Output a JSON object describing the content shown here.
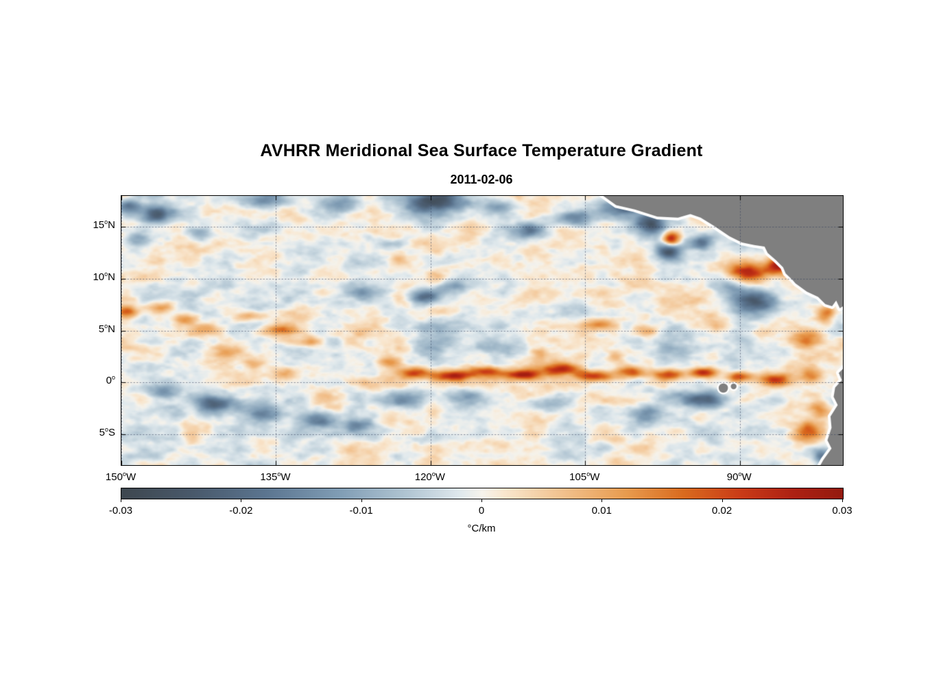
{
  "figure": {
    "title": "AVHRR Meridional Sea Surface Temperature Gradient",
    "date": "2011-02-06"
  },
  "chart_data": {
    "type": "heatmap",
    "title": "AVHRR Meridional Sea Surface Temperature Gradient",
    "subtitle": "2011-02-06",
    "lon_range": [
      -150,
      -80
    ],
    "lat_range": [
      -8,
      18
    ],
    "lon_ticks": [
      {
        "v": -150,
        "n": "150",
        "h": "W"
      },
      {
        "v": -135,
        "n": "135",
        "h": "W"
      },
      {
        "v": -120,
        "n": "120",
        "h": "W"
      },
      {
        "v": -105,
        "n": "105",
        "h": "W"
      },
      {
        "v": -90,
        "n": "90",
        "h": "W"
      }
    ],
    "lat_ticks": [
      {
        "v": 15,
        "n": "15",
        "h": "N"
      },
      {
        "v": 10,
        "n": "10",
        "h": "N"
      },
      {
        "v": 5,
        "n": "5",
        "h": "N"
      },
      {
        "v": 0,
        "n": "0",
        "h": ""
      },
      {
        "v": -5,
        "n": "5",
        "h": "S"
      }
    ],
    "grid": "dotted",
    "colorbar": {
      "min": -0.03,
      "max": 0.03,
      "ticks": [
        "-0.03",
        "-0.02",
        "-0.01",
        "0",
        "0.01",
        "0.02",
        "0.03"
      ],
      "label": "°C/km",
      "stops": [
        {
          "t": 0.0,
          "c": "#3e474f"
        },
        {
          "t": 0.1,
          "c": "#49596b"
        },
        {
          "t": 0.2,
          "c": "#5b7590"
        },
        {
          "t": 0.3,
          "c": "#7f9cb4"
        },
        {
          "t": 0.4,
          "c": "#b3c7d4"
        },
        {
          "t": 0.47,
          "c": "#e0e9ed"
        },
        {
          "t": 0.5,
          "c": "#f6f3ec"
        },
        {
          "t": 0.53,
          "c": "#f9e7cf"
        },
        {
          "t": 0.6,
          "c": "#f3c696"
        },
        {
          "t": 0.7,
          "c": "#e89b4e"
        },
        {
          "t": 0.78,
          "c": "#d96a1e"
        },
        {
          "t": 0.86,
          "c": "#c93a17"
        },
        {
          "t": 0.93,
          "c": "#ad2113"
        },
        {
          "t": 1.0,
          "c": "#941a0f"
        }
      ]
    },
    "field": {
      "noise_amp": 0.0075,
      "features": [
        [
          -149.3,
          17.0,
          -0.016,
          1.0,
          0.7
        ],
        [
          -146.5,
          16.2,
          -0.018,
          1.8,
          0.9
        ],
        [
          -148.5,
          13.9,
          -0.01,
          1.2,
          0.7
        ],
        [
          -142.5,
          14.3,
          -0.012,
          1.4,
          0.7
        ],
        [
          -136.0,
          17.6,
          -0.014,
          2.0,
          0.8
        ],
        [
          -128.5,
          17.3,
          -0.013,
          1.6,
          0.8
        ],
        [
          -119.5,
          17.5,
          -0.026,
          3.0,
          1.2
        ],
        [
          -113.5,
          16.9,
          -0.015,
          1.6,
          0.8
        ],
        [
          -110.5,
          14.6,
          -0.016,
          1.6,
          0.8
        ],
        [
          -106.0,
          15.9,
          -0.017,
          1.9,
          0.8
        ],
        [
          -101.5,
          16.8,
          -0.02,
          2.2,
          1.0
        ],
        [
          -98.6,
          15.3,
          -0.022,
          1.4,
          1.0
        ],
        [
          -96.8,
          12.6,
          -0.022,
          1.3,
          0.9
        ],
        [
          -93.6,
          13.6,
          -0.018,
          1.3,
          0.9
        ],
        [
          -96.6,
          13.9,
          0.03,
          0.85,
          0.7
        ],
        [
          -89.0,
          10.6,
          0.024,
          2.0,
          0.8
        ],
        [
          -86.0,
          11.3,
          0.028,
          1.3,
          0.8
        ],
        [
          -88.3,
          7.9,
          -0.026,
          1.9,
          1.1
        ],
        [
          -91.0,
          9.2,
          -0.013,
          1.4,
          0.8
        ],
        [
          -149.5,
          6.8,
          0.018,
          1.2,
          0.6
        ],
        [
          -146.2,
          7.2,
          0.014,
          1.4,
          0.6
        ],
        [
          -144.0,
          6.1,
          0.012,
          1.3,
          0.55
        ],
        [
          -141.5,
          5.2,
          0.012,
          1.3,
          0.55
        ],
        [
          -137.5,
          6.4,
          0.011,
          1.4,
          0.5
        ],
        [
          -134.6,
          5.1,
          0.016,
          1.6,
          0.55
        ],
        [
          -131.8,
          3.9,
          0.013,
          1.3,
          0.55
        ],
        [
          -140.0,
          2.9,
          0.012,
          1.1,
          0.55
        ],
        [
          -137.2,
          1.9,
          0.011,
          1.1,
          0.55
        ],
        [
          -134.2,
          0.9,
          0.011,
          1.3,
          0.55
        ],
        [
          -126.5,
          8.6,
          -0.011,
          1.8,
          0.8
        ],
        [
          -120.6,
          8.3,
          -0.017,
          1.3,
          0.7
        ],
        [
          -118.0,
          9.0,
          -0.01,
          1.8,
          0.8
        ],
        [
          -117.0,
          4.6,
          -0.007,
          4.5,
          1.8
        ],
        [
          -96.0,
          3.2,
          -0.007,
          3.5,
          1.2
        ],
        [
          -124.0,
          1.8,
          0.015,
          1.4,
          0.6
        ],
        [
          -121.5,
          0.9,
          0.021,
          1.7,
          0.55
        ],
        [
          -118.0,
          0.6,
          0.024,
          1.9,
          0.5
        ],
        [
          -114.5,
          1.0,
          0.022,
          1.7,
          0.55
        ],
        [
          -111.0,
          0.7,
          0.026,
          1.7,
          0.5
        ],
        [
          -107.5,
          1.2,
          0.022,
          1.7,
          0.55
        ],
        [
          -104.0,
          0.6,
          0.026,
          1.7,
          0.5
        ],
        [
          -100.5,
          1.0,
          0.02,
          1.4,
          0.55
        ],
        [
          -97.0,
          0.7,
          0.022,
          1.4,
          0.5
        ],
        [
          -93.5,
          0.9,
          0.024,
          1.4,
          0.5
        ],
        [
          -90.0,
          0.5,
          0.022,
          1.2,
          0.5
        ],
        [
          -86.5,
          0.3,
          0.019,
          1.4,
          0.6
        ],
        [
          -83.0,
          0.6,
          0.015,
          1.2,
          0.6
        ],
        [
          -109.5,
          2.7,
          0.011,
          0.9,
          0.7
        ],
        [
          -102.0,
          2.4,
          0.009,
          0.8,
          0.6
        ],
        [
          -146.0,
          -1.0,
          -0.013,
          1.5,
          0.7
        ],
        [
          -141.0,
          -2.2,
          -0.019,
          1.9,
          0.8
        ],
        [
          -136.0,
          -3.0,
          -0.015,
          1.5,
          0.8
        ],
        [
          -131.0,
          -3.6,
          -0.019,
          2.0,
          0.8
        ],
        [
          -127.0,
          -4.3,
          -0.013,
          1.4,
          0.7
        ],
        [
          -122.5,
          -1.6,
          -0.011,
          1.9,
          0.8
        ],
        [
          -116.5,
          -1.3,
          -0.012,
          1.7,
          0.8
        ],
        [
          -93.5,
          -1.7,
          -0.022,
          2.3,
          0.7
        ],
        [
          -99.0,
          -3.1,
          -0.011,
          1.4,
          0.7
        ],
        [
          -109.0,
          -2.2,
          -0.009,
          1.8,
          0.8
        ],
        [
          -83.3,
          -4.8,
          0.022,
          1.4,
          1.0
        ],
        [
          -82.2,
          -2.6,
          0.013,
          1.0,
          0.8
        ],
        [
          -81.6,
          6.5,
          0.017,
          0.9,
          0.9
        ],
        [
          -83.5,
          4.2,
          0.013,
          1.4,
          1.0
        ],
        [
          -103.5,
          5.6,
          0.016,
          1.7,
          0.6
        ],
        [
          -99.2,
          4.9,
          0.013,
          1.4,
          0.6
        ],
        [
          -92.0,
          5.5,
          0.01,
          1.3,
          0.6
        ],
        [
          -82.0,
          -7.2,
          -0.014,
          0.9,
          0.8
        ]
      ]
    },
    "land": {
      "color": "#7f7f7f",
      "coast_gap_color": "#ffffff",
      "polygons": [
        [
          [
            -103.8,
            18.4
          ],
          [
            -102.0,
            17.1
          ],
          [
            -100.2,
            16.7
          ],
          [
            -98.0,
            16.0
          ],
          [
            -96.0,
            15.9
          ],
          [
            -94.8,
            16.25
          ],
          [
            -93.8,
            15.9
          ],
          [
            -92.5,
            15.1
          ],
          [
            -91.0,
            14.1
          ],
          [
            -89.8,
            13.5
          ],
          [
            -88.6,
            13.25
          ],
          [
            -87.6,
            13.1
          ],
          [
            -87.3,
            12.5
          ],
          [
            -86.5,
            11.8
          ],
          [
            -85.8,
            11.1
          ],
          [
            -85.55,
            10.5
          ],
          [
            -84.9,
            9.9
          ],
          [
            -84.6,
            9.55
          ],
          [
            -83.5,
            8.75
          ],
          [
            -82.4,
            8.25
          ],
          [
            -81.7,
            7.55
          ],
          [
            -81.05,
            7.35
          ],
          [
            -80.65,
            7.9
          ],
          [
            -80.3,
            7.15
          ],
          [
            -79.7,
            7.5
          ],
          [
            -79.7,
            18.4
          ]
        ],
        [
          [
            -79.7,
            1.6
          ],
          [
            -80.4,
            0.9
          ],
          [
            -80.1,
            0.2
          ],
          [
            -80.75,
            -0.5
          ],
          [
            -80.9,
            -1.4
          ],
          [
            -80.5,
            -2.2
          ],
          [
            -81.2,
            -3.3
          ],
          [
            -81.1,
            -4.4
          ],
          [
            -81.5,
            -5.6
          ],
          [
            -81.1,
            -6.4
          ],
          [
            -81.9,
            -7.5
          ],
          [
            -82.4,
            -8.4
          ],
          [
            -79.7,
            -8.4
          ]
        ]
      ],
      "islands": [
        {
          "lon": -91.6,
          "lat": -0.55,
          "r": 0.45
        },
        {
          "lon": -90.6,
          "lat": -0.4,
          "r": 0.28
        }
      ]
    }
  }
}
